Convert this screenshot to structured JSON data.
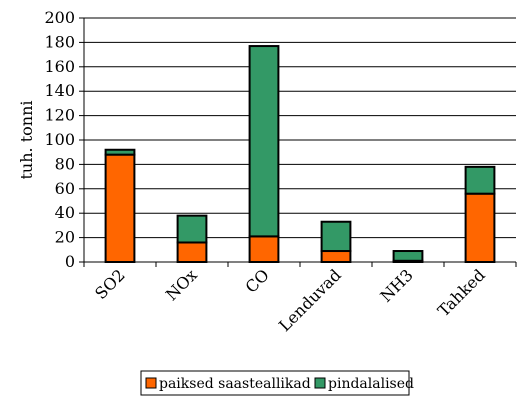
{
  "chart_data": {
    "type": "bar",
    "stacked": true,
    "categories": [
      "SO2",
      "NOx",
      "CO",
      "Lenduvad",
      "NH3",
      "Tahked"
    ],
    "series": [
      {
        "name": "paiksed saasteallikad",
        "color": "#ff6600",
        "values": [
          88,
          16,
          21,
          9,
          1,
          56
        ]
      },
      {
        "name": "pindalalised",
        "color": "#339966",
        "values": [
          4,
          22,
          156,
          24,
          8,
          22
        ]
      }
    ],
    "title": "",
    "xlabel": "",
    "ylabel": "tuh. tonni",
    "ylim": [
      0,
      200
    ],
    "yticks": [
      0,
      20,
      40,
      60,
      80,
      100,
      120,
      140,
      160,
      180,
      200
    ],
    "grid": true,
    "legend_position": "bottom"
  }
}
